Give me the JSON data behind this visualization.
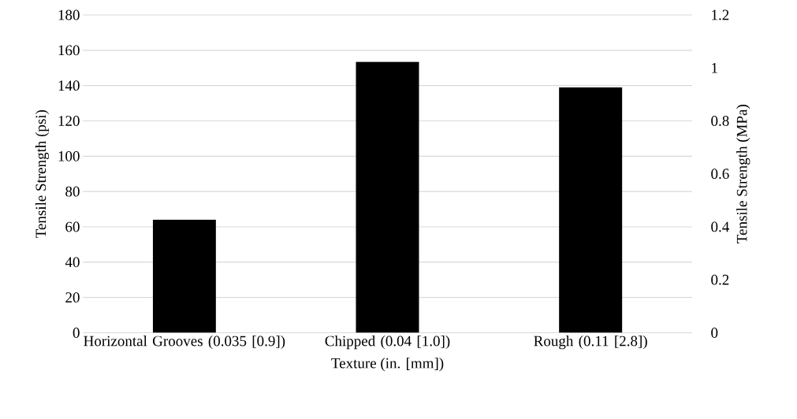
{
  "chart_data": {
    "type": "bar",
    "categories": [
      "Horizontal Grooves (0.035 [0.9])",
      "Chipped (0.04 [1.0])",
      "Rough (0.11 [2.8])"
    ],
    "values": [
      64,
      153.4,
      139
    ],
    "color": "#000000",
    "xlabel": "Texture (in. [mm])",
    "ylabel": "Tensile Strength (psi)",
    "y2label": "Tensile Strength (MPa)",
    "ylim": [
      0,
      180
    ],
    "yticks": [
      0,
      20,
      40,
      60,
      80,
      100,
      120,
      140,
      160,
      180
    ],
    "y2lim": [
      0,
      1.2
    ],
    "y2ticks": [
      0,
      0.2,
      0.4,
      0.6,
      0.8,
      {
        "value": 1.0,
        "label": "1"
      },
      1.2
    ],
    "grid": "y"
  }
}
